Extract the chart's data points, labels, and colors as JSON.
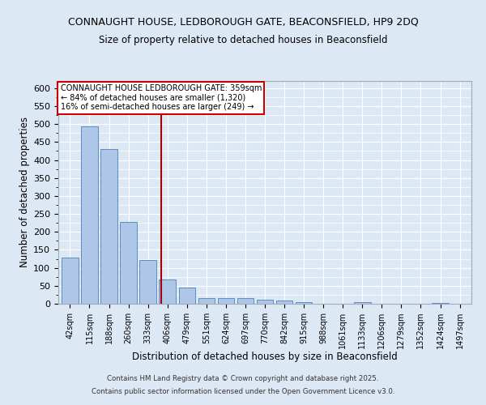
{
  "title1": "CONNAUGHT HOUSE, LEDBOROUGH GATE, BEACONSFIELD, HP9 2DQ",
  "title2": "Size of property relative to detached houses in Beaconsfield",
  "xlabel": "Distribution of detached houses by size in Beaconsfield",
  "ylabel": "Number of detached properties",
  "categories": [
    "42sqm",
    "115sqm",
    "188sqm",
    "260sqm",
    "333sqm",
    "406sqm",
    "479sqm",
    "551sqm",
    "624sqm",
    "697sqm",
    "770sqm",
    "842sqm",
    "915sqm",
    "988sqm",
    "1061sqm",
    "1133sqm",
    "1206sqm",
    "1279sqm",
    "1352sqm",
    "1424sqm",
    "1497sqm"
  ],
  "values": [
    128,
    493,
    430,
    228,
    122,
    68,
    44,
    16,
    16,
    15,
    12,
    8,
    5,
    0,
    0,
    5,
    0,
    0,
    0,
    3,
    0
  ],
  "bar_color": "#aec6e8",
  "bar_edge_color": "#5b8dc0",
  "background_color": "#dde8f5",
  "grid_color": "#ffffff",
  "vline_x": 4.68,
  "vline_color": "#aa0000",
  "annotation_text": "CONNAUGHT HOUSE LEDBOROUGH GATE: 359sqm\n← 84% of detached houses are smaller (1,320)\n16% of semi-detached houses are larger (249) →",
  "annotation_box_color": "#ffffff",
  "annotation_box_edge": "#cc0000",
  "footer1": "Contains HM Land Registry data © Crown copyright and database right 2025.",
  "footer2": "Contains public sector information licensed under the Open Government Licence v3.0.",
  "ylim": [
    0,
    620
  ],
  "yticks": [
    0,
    50,
    100,
    150,
    200,
    250,
    300,
    350,
    400,
    450,
    500,
    550,
    600
  ]
}
